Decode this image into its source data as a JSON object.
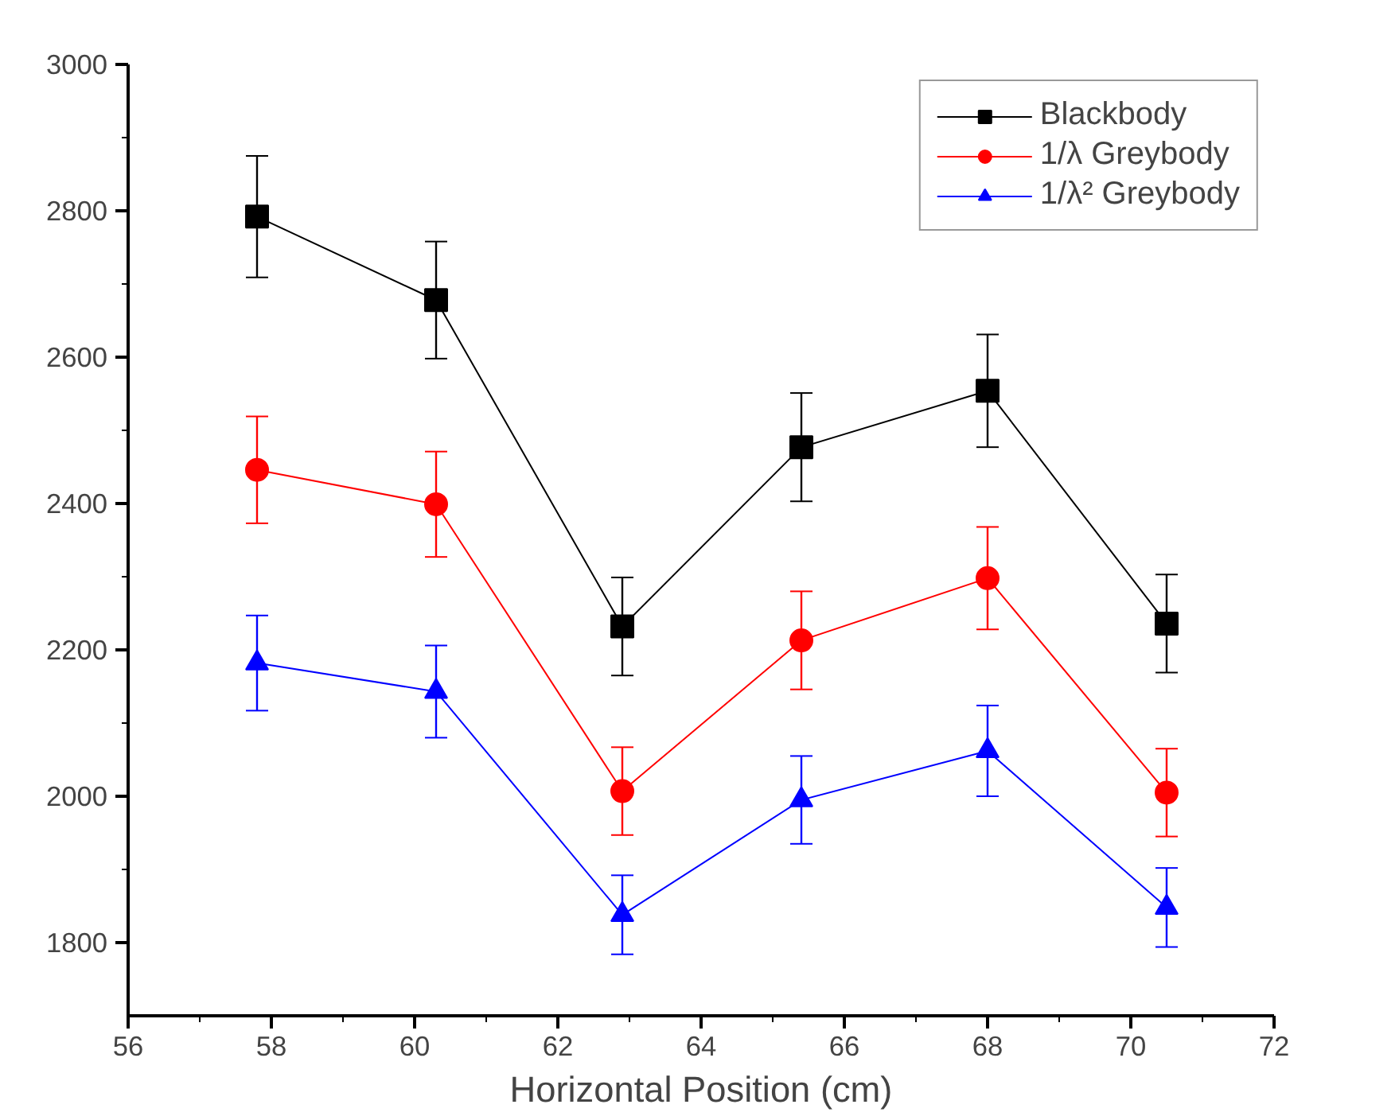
{
  "chart_data": {
    "type": "line",
    "xlabel": "Horizontal Position (cm)",
    "x": [
      57.8,
      60.3,
      62.9,
      65.4,
      68.0,
      70.5
    ],
    "series": [
      {
        "name": "Blackbody",
        "color": "#000000",
        "marker": "square",
        "values": [
          2792,
          2678,
          2232,
          2477,
          2554,
          2236
        ],
        "errors": [
          83,
          80,
          67,
          74,
          77,
          67
        ]
      },
      {
        "name": "1/λ Greybody",
        "color": "#ff0000",
        "marker": "circle",
        "values": [
          2446,
          2399,
          2007,
          2213,
          2298,
          2005
        ],
        "errors": [
          73,
          72,
          60,
          67,
          70,
          60
        ]
      },
      {
        "name": "1/λ² Greybody",
        "color": "#0000ff",
        "marker": "triangle",
        "values": [
          2182,
          2143,
          1838,
          1995,
          2062,
          1848
        ],
        "errors": [
          65,
          63,
          54,
          60,
          62,
          54
        ]
      }
    ],
    "xlim": [
      56,
      72
    ],
    "xticks": [
      56,
      58,
      60,
      62,
      64,
      66,
      68,
      70,
      72
    ],
    "ylim": [
      1700,
      3000
    ],
    "yticks": [
      1800,
      2000,
      2200,
      2400,
      2600,
      2800,
      3000
    ],
    "grid": false,
    "legend": "top right",
    "line_style": "solid"
  }
}
